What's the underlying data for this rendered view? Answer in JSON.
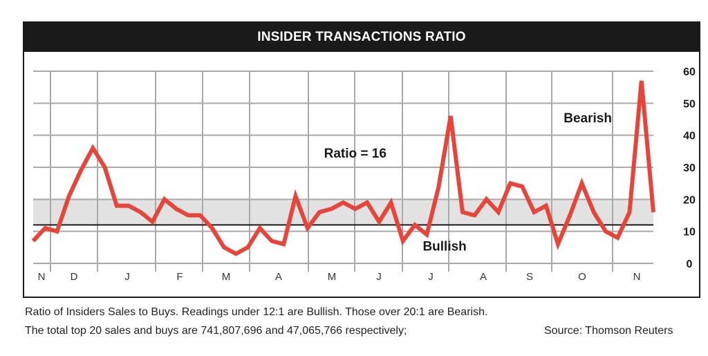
{
  "chart_data": {
    "type": "line",
    "title": "INSIDER TRANSACTIONS RATIO",
    "xlabel": "",
    "ylabel": "",
    "ylim": [
      0,
      60
    ],
    "yticks": [
      0,
      10,
      20,
      30,
      40,
      50,
      60
    ],
    "month_labels": [
      "N",
      "D",
      "J",
      "F",
      "M",
      "A",
      "M",
      "J",
      "J",
      "A",
      "S",
      "O",
      "N"
    ],
    "grid": true,
    "bands": [
      {
        "from": 12,
        "to": 20,
        "color": "#e2e2e2"
      }
    ],
    "reference_lines": [
      {
        "value": 12,
        "color": "#1a1a1a"
      }
    ],
    "series": [
      {
        "color": "#e8443a",
        "values": [
          7,
          11,
          10,
          21,
          29,
          36,
          30,
          18,
          18,
          16,
          13,
          20,
          17,
          15,
          15,
          11,
          5,
          3,
          5,
          11,
          7,
          6,
          21,
          11,
          16,
          17,
          19,
          17,
          19,
          13,
          19,
          7,
          12,
          9,
          24,
          46,
          16,
          15,
          20,
          16,
          25,
          24,
          16,
          18,
          6,
          15,
          25,
          16,
          10,
          8,
          16,
          57,
          16
        ]
      }
    ],
    "annotations": [
      {
        "text": "Ratio = 16",
        "x": 27,
        "y": 33
      },
      {
        "text": "Bearish",
        "x": 46.5,
        "y": 44
      },
      {
        "text": "Bullish",
        "x": 34.5,
        "y": 4
      }
    ]
  },
  "caption": {
    "line1": "Ratio of Insiders Sales to Buys. Readings under 12:1 are Bullish. Those over 20:1 are Bearish.",
    "line2": "The total top 20 sales and buys are 741,807,696 and 47,065,766 respectively;",
    "source": "Source: Thomson Reuters"
  }
}
